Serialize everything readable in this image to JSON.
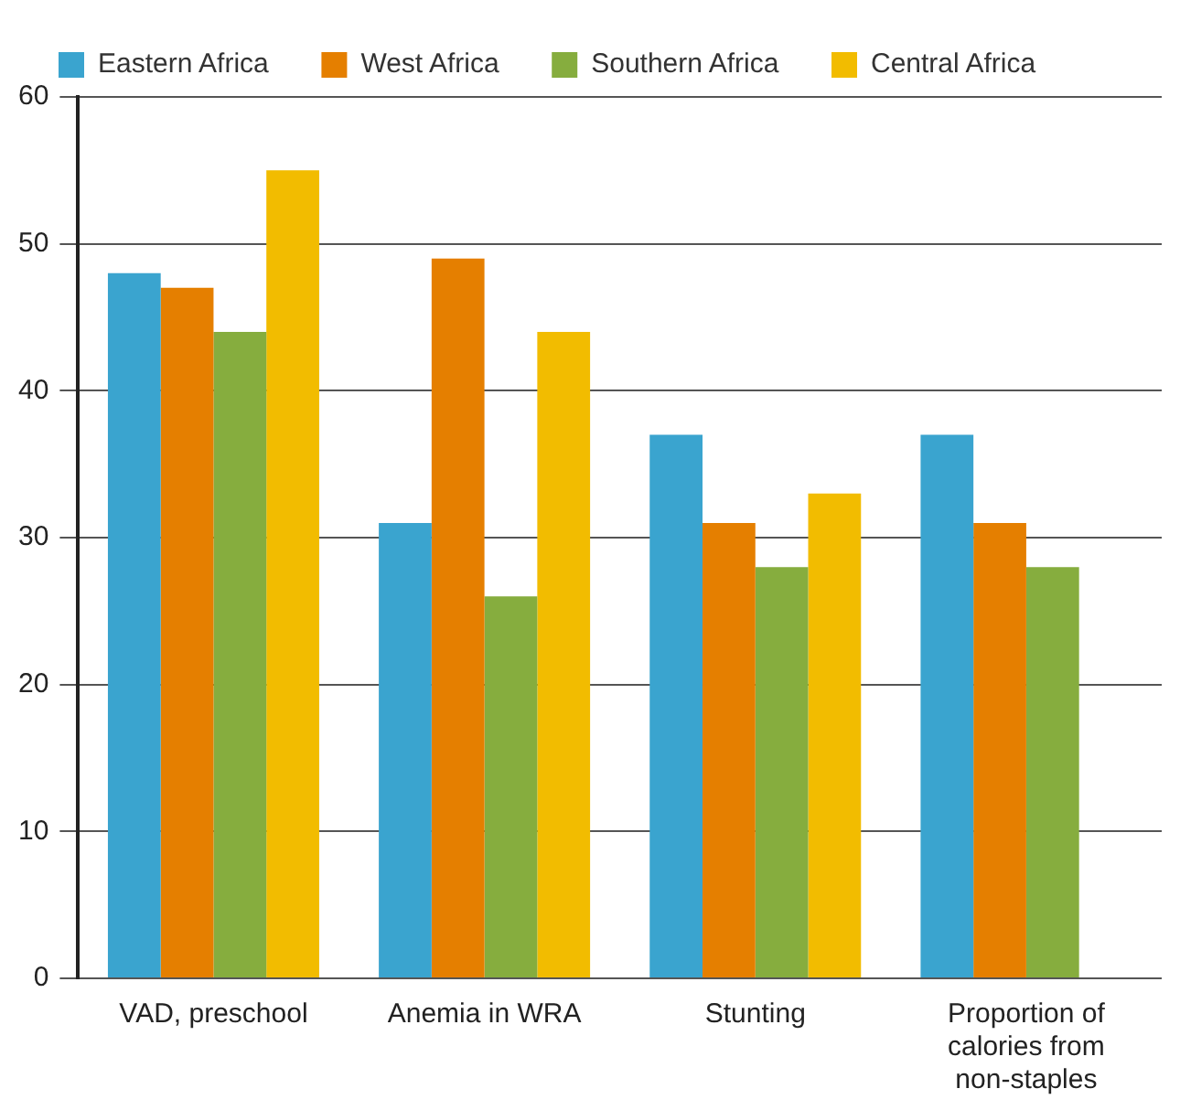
{
  "chart_data": {
    "type": "bar",
    "categories": [
      "VAD, preschool",
      "Anemia in WRA",
      "Stunting",
      "Proportion of calories from non-staples"
    ],
    "series": [
      {
        "name": "Eastern Africa",
        "color": "#3aa4cf",
        "values": [
          48,
          31,
          37,
          37
        ]
      },
      {
        "name": "West Africa",
        "color": "#e57f00",
        "values": [
          47,
          49,
          31,
          31
        ]
      },
      {
        "name": "Southern Africa",
        "color": "#86ad3e",
        "values": [
          44,
          26,
          28,
          28
        ]
      },
      {
        "name": "Central Africa",
        "color": "#f2bc00",
        "values": [
          55,
          44,
          33,
          null
        ]
      }
    ],
    "ylim": [
      0,
      60
    ],
    "yticks": [
      0,
      10,
      20,
      30,
      40,
      50,
      60
    ],
    "grid": "y",
    "legend": "top"
  }
}
